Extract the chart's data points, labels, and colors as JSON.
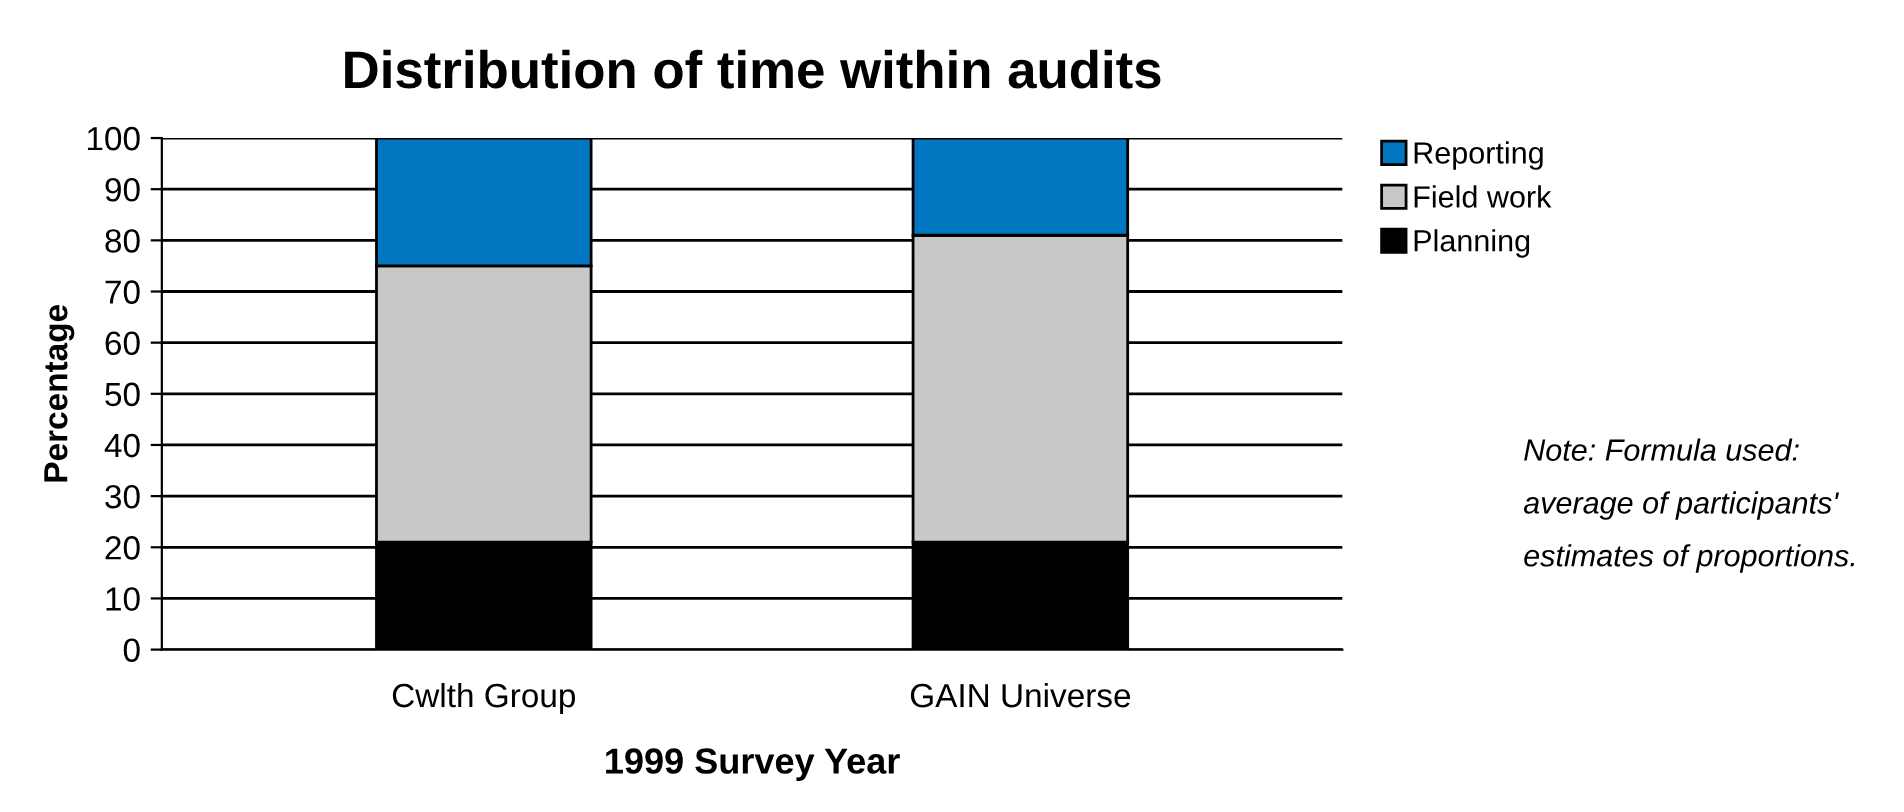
{
  "chart_data": {
    "type": "bar",
    "title": "Distribution of time within audits",
    "xlabel": "1999 Survey Year",
    "ylabel": "Percentage",
    "categories": [
      "Cwlth Group",
      "GAIN Universe"
    ],
    "stacked": true,
    "series": [
      {
        "name": "Planning",
        "color": "#000000",
        "values": [
          21,
          21
        ]
      },
      {
        "name": "Field work",
        "color": "#c8c8c8",
        "values": [
          54,
          60
        ]
      },
      {
        "name": "Reporting",
        "color": "#0077c0",
        "values": [
          25,
          19
        ]
      }
    ],
    "ylim": [
      0,
      100
    ],
    "yticks": [
      0,
      10,
      20,
      30,
      40,
      50,
      60,
      70,
      80,
      90,
      100
    ],
    "grid": "y",
    "legend": "right",
    "annotations": [
      "Note: Formula used: average of participants' estimates of proportions."
    ]
  }
}
